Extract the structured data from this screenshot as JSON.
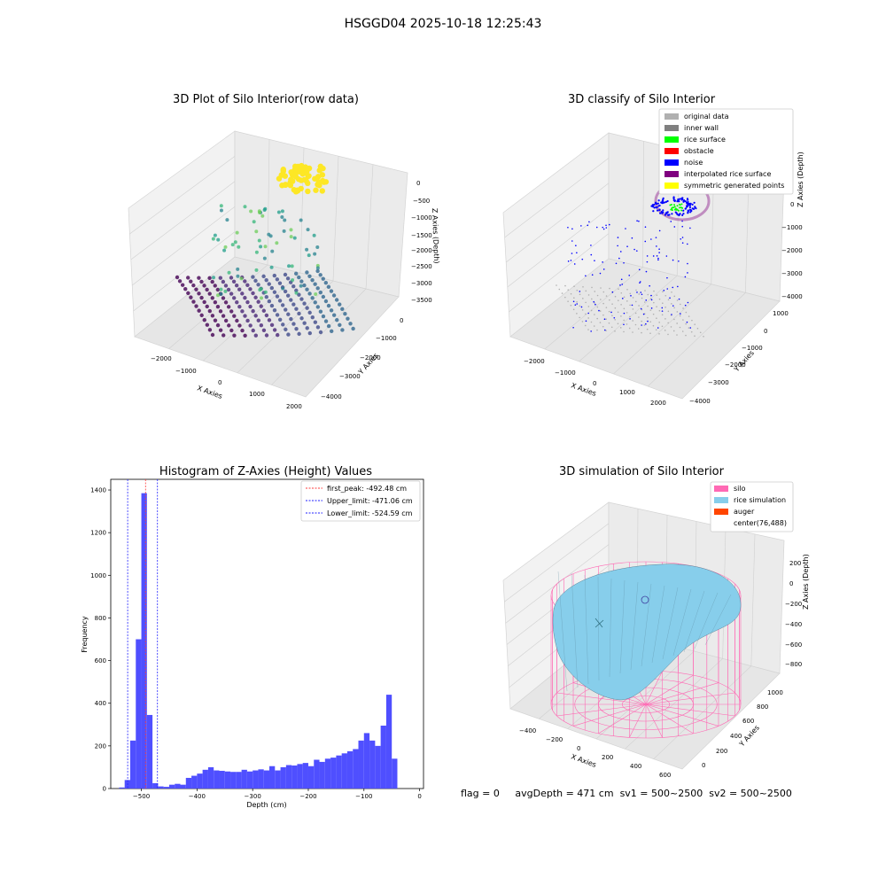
{
  "figure_title": "HSGGD04 2025-10-18 12:25:43",
  "footer": {
    "flag": "flag = 0",
    "avg_depth": "avgDepth = 471 cm",
    "sv1": "sv1 = 500~2500",
    "sv2": "sv2 = 500~2500"
  },
  "colors": {
    "hist_bar": "#4f4fff",
    "first_peak": "#ff3b3b",
    "limit_line": "#2020ff",
    "silo": "#ff69b4",
    "rice": "#87ceeb",
    "auger": "#ff4500",
    "original": "#b0b0b0",
    "inner_wall": "#808080",
    "rice_surface": "#00ff00",
    "obstacle": "#ff0000",
    "noise": "#0000ff",
    "interpolated": "#800080",
    "symmetric": "#ffff00"
  },
  "chart_data": [
    {
      "type": "scatter",
      "title": "3D Plot of Silo Interior(row data)",
      "xlabel": "X Axies",
      "ylabel": "Y Axies",
      "zlabel": "Z Axies (Depth)",
      "xticks": [
        "−2000",
        "−1000",
        "0",
        "1000",
        "2000"
      ],
      "yticks": [
        "0",
        "−1000",
        "−2000",
        "−3000",
        "−4000"
      ],
      "zticks": [
        "0",
        "−500",
        "−1000",
        "−1500",
        "−2000",
        "−2500",
        "−3000",
        "−3500"
      ],
      "xlim": [
        -2300,
        2300
      ],
      "ylim": [
        -4300,
        300
      ],
      "zlim": [
        -3700,
        100
      ],
      "colormap": "viridis (by depth)"
    },
    {
      "type": "scatter",
      "title": "3D classify of Silo Interior",
      "xticks": [
        "−2000",
        "−1000",
        "0",
        "1000",
        "2000"
      ],
      "yticks": [
        "1000",
        "0",
        "−1000",
        "−2000",
        "−3000",
        "−4000"
      ],
      "zticks": [
        "0",
        "−1000",
        "−2000",
        "−3000",
        "−4000"
      ],
      "xlabel": "X Axies",
      "ylabel": "Y Axies",
      "zlabel": "Z Axies (Depth)",
      "legend_position": "upper-right",
      "legend": [
        {
          "label": "original data",
          "color": "#b0b0b0"
        },
        {
          "label": "inner wall",
          "color": "#808080"
        },
        {
          "label": "rice surface",
          "color": "#00ff00"
        },
        {
          "label": "obstacle",
          "color": "#ff0000"
        },
        {
          "label": "noise",
          "color": "#0000ff"
        },
        {
          "label": "interpolated rice surface",
          "color": "#800080"
        },
        {
          "label": "symmetric generated points",
          "color": "#ffff00"
        }
      ]
    },
    {
      "type": "bar",
      "title": "Histogram of Z-Axies (Height) Values",
      "xlabel": "Depth (cm)",
      "ylabel": "Frequency",
      "xlim": [
        -555,
        7
      ],
      "ylim": [
        0,
        1450
      ],
      "xticks": [
        -500,
        -400,
        -300,
        -200,
        -100,
        0
      ],
      "yticks": [
        0,
        200,
        400,
        600,
        800,
        1000,
        1200,
        1400
      ],
      "bin_start": -540,
      "bin_width": 10,
      "values": [
        5,
        40,
        225,
        700,
        1385,
        345,
        25,
        10,
        8,
        18,
        22,
        18,
        50,
        60,
        70,
        88,
        100,
        85,
        83,
        80,
        78,
        78,
        88,
        80,
        85,
        90,
        85,
        105,
        85,
        100,
        110,
        108,
        115,
        120,
        105,
        135,
        125,
        140,
        145,
        155,
        165,
        175,
        185,
        225,
        260,
        225,
        200,
        295,
        440,
        140
      ],
      "vlines": [
        {
          "label": "first_peak: -492.48 cm",
          "x": -492.48,
          "style": "first_peak"
        },
        {
          "label": "Upper_limit: -471.06 cm",
          "x": -471.06,
          "style": "limit"
        },
        {
          "label": "Lower_limit: -524.59 cm",
          "x": -524.59,
          "style": "limit"
        }
      ],
      "legend_position": "upper-right"
    },
    {
      "type": "surface",
      "title": "3D simulation of Silo Interior",
      "xlabel": "X Axies",
      "ylabel": "Y Axies",
      "zlabel": "Z Axies (Depth)",
      "xticks": [
        "−400",
        "−200",
        "0",
        "200",
        "400",
        "600"
      ],
      "yticks": [
        "0",
        "200",
        "400",
        "600",
        "800",
        "1000"
      ],
      "zticks": [
        "200",
        "0",
        "−200",
        "−400",
        "−600",
        "−800"
      ],
      "legend_position": "upper-right",
      "legend": [
        {
          "label": "silo",
          "color": "#ff69b4"
        },
        {
          "label": "rice simulation",
          "color": "#87ceeb"
        },
        {
          "label": "auger",
          "color": "#ff4500"
        },
        {
          "label": "center(76,488)",
          "color": null
        }
      ]
    }
  ]
}
